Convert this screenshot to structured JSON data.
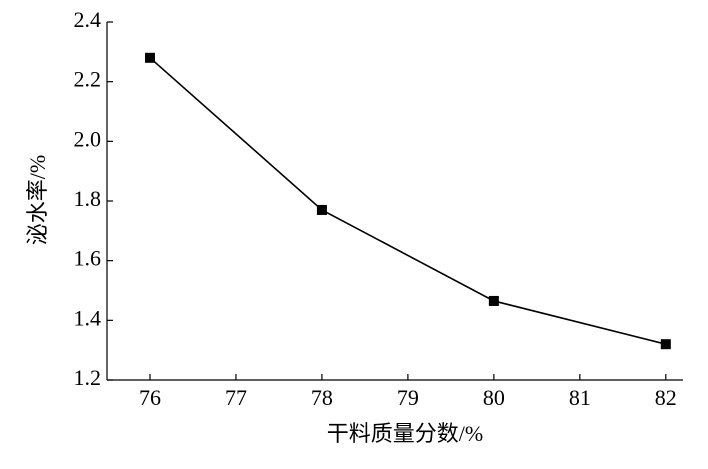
{
  "chart_data": {
    "type": "line",
    "x_label": "干料质量分数/%",
    "y_label": "泌水率/%",
    "x": [
      76,
      78,
      80,
      82
    ],
    "series": [
      {
        "name": "泌水率",
        "color": "#000000",
        "values": [
          2.28,
          1.77,
          1.465,
          1.32
        ]
      }
    ],
    "xlim": [
      75.5,
      82.2
    ],
    "xticks": [
      76,
      77,
      78,
      79,
      80,
      81,
      82
    ],
    "ylim": [
      1.2,
      2.4
    ],
    "yticks": [
      1.2,
      1.4,
      1.6,
      1.8,
      {
        "value": 2.0,
        "label": "2.0"
      },
      2.2,
      2.4
    ],
    "grid": false,
    "marker": "square"
  }
}
